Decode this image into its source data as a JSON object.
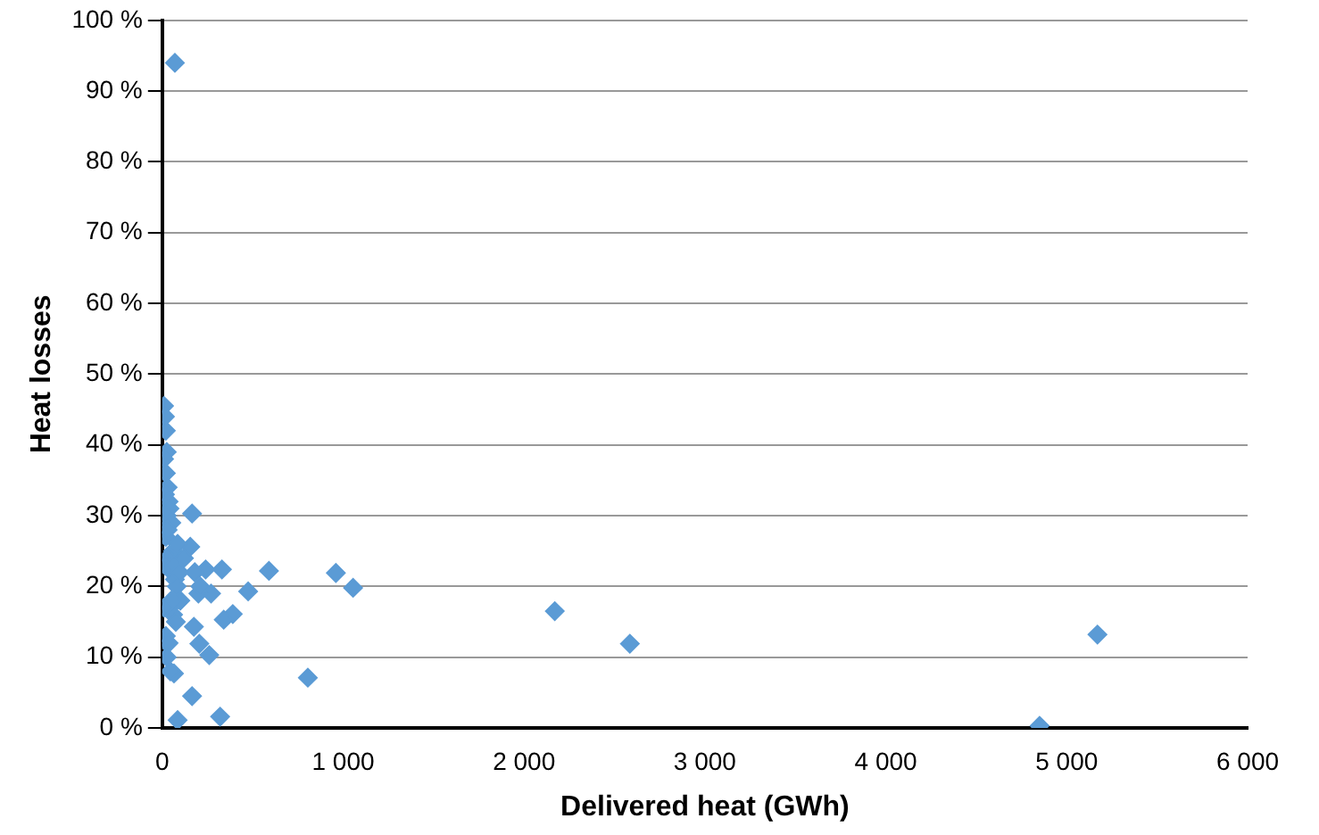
{
  "chart_data": {
    "type": "scatter",
    "xlabel": "Delivered heat (GWh)",
    "ylabel": "Heat losses",
    "xlim": [
      0,
      6000
    ],
    "xticks": [
      {
        "value": 0,
        "label": "0"
      },
      {
        "value": 1000,
        "label": "1 000"
      },
      {
        "value": 2000,
        "label": "2 000"
      },
      {
        "value": 3000,
        "label": "3 000"
      },
      {
        "value": 4000,
        "label": "4 000"
      },
      {
        "value": 5000,
        "label": "5 000"
      },
      {
        "value": 6000,
        "label": "6 000"
      }
    ],
    "ylim": [
      0,
      100
    ],
    "yticks": [
      {
        "value": 0,
        "label": "0 %"
      },
      {
        "value": 10,
        "label": "10 %"
      },
      {
        "value": 20,
        "label": "20 %"
      },
      {
        "value": 30,
        "label": "30 %"
      },
      {
        "value": 40,
        "label": "40 %"
      },
      {
        "value": 50,
        "label": "50 %"
      },
      {
        "value": 60,
        "label": "60 %"
      },
      {
        "value": 70,
        "label": "70 %"
      },
      {
        "value": 80,
        "label": "80 %"
      },
      {
        "value": 90,
        "label": "90 %"
      },
      {
        "value": 100,
        "label": "100 %"
      }
    ],
    "grid": "y",
    "legend": false,
    "marker": "diamond",
    "series": [
      {
        "color": "#5b9bd5",
        "x": [
          70,
          165,
          330,
          590,
          960,
          1055,
          475,
          390,
          340,
          805,
          320,
          85,
          260,
          205,
          175,
          165,
          65,
          30,
          240,
          155,
          270,
          2170,
          2585,
          4850,
          5170,
          10,
          15,
          20,
          25,
          10,
          20,
          30,
          15,
          35,
          40,
          25,
          50,
          10,
          20,
          60,
          30,
          15,
          55,
          70,
          80,
          100,
          40,
          60,
          75,
          120,
          20,
          35,
          50,
          65,
          85,
          95,
          180,
          200,
          210,
          25,
          45,
          10,
          30
        ],
        "values": [
          94,
          30.3,
          22.4,
          22.2,
          21.9,
          19.8,
          19.3,
          16.1,
          15.3,
          7.1,
          1.6,
          1.1,
          10.3,
          11.9,
          14.3,
          4.5,
          7.7,
          11.9,
          22.4,
          25.6,
          19,
          16.5,
          11.9,
          0.3,
          13.2,
          45.5,
          44,
          42,
          39,
          38,
          36,
          34,
          33,
          32,
          31,
          30,
          29,
          28,
          27,
          25,
          24,
          23,
          22,
          21,
          20,
          18,
          17,
          16,
          15,
          24,
          13,
          12,
          18,
          23,
          26,
          22,
          22,
          19,
          20,
          10,
          8,
          17,
          28
        ]
      }
    ]
  }
}
